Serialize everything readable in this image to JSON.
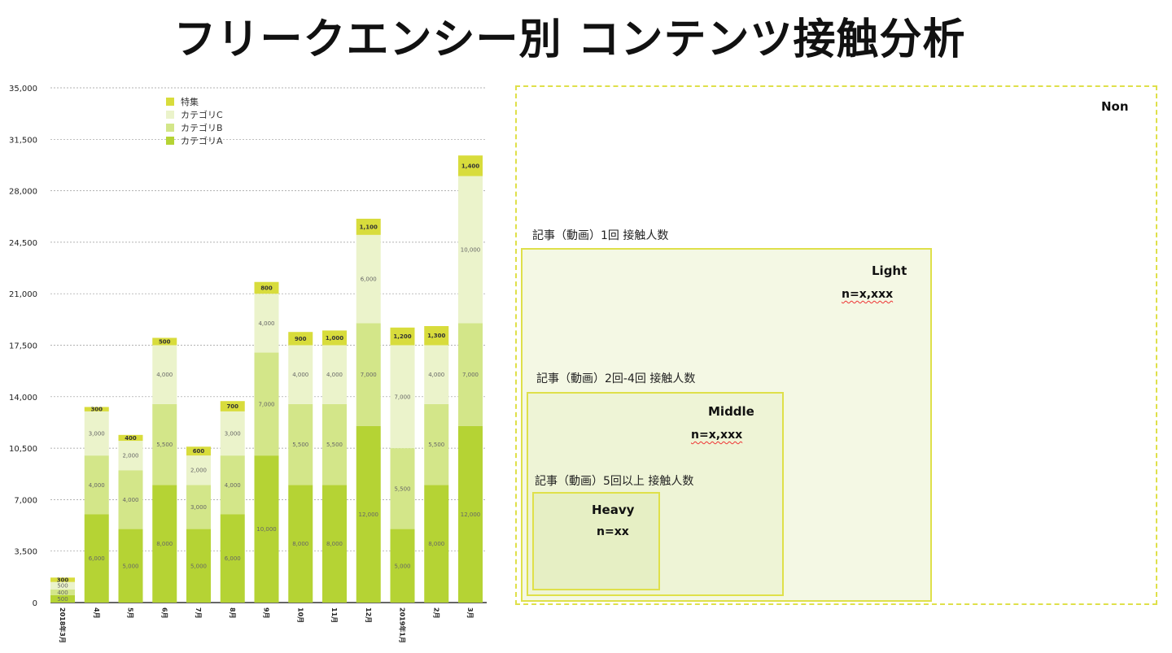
{
  "title": "フリークエンシー別 コンテンツ接触分析",
  "chart_data": {
    "type": "bar",
    "stacked": true,
    "categories": [
      "2018年3月",
      "4月",
      "5月",
      "6月",
      "7月",
      "8月",
      "9月",
      "10月",
      "11月",
      "12月",
      "2019年1月",
      "2月",
      "3月"
    ],
    "series": [
      {
        "name": "カテゴリA",
        "color": "#b5d334",
        "values": [
          500,
          6000,
          5000,
          8000,
          5000,
          6000,
          10000,
          8000,
          8000,
          12000,
          5000,
          8000,
          12000
        ]
      },
      {
        "name": "カテゴリB",
        "color": "#d3e689",
        "values": [
          400,
          4000,
          4000,
          5500,
          3000,
          4000,
          7000,
          5500,
          5500,
          7000,
          5500,
          5500,
          7000
        ]
      },
      {
        "name": "カテゴリC",
        "color": "#ebf3cb",
        "values": [
          500,
          3000,
          2000,
          4000,
          2000,
          3000,
          4000,
          4000,
          4000,
          6000,
          7000,
          4000,
          10000
        ]
      },
      {
        "name": "特集",
        "color": "#d8dc3c",
        "values": [
          300,
          300,
          400,
          500,
          600,
          700,
          800,
          900,
          1000,
          1100,
          1200,
          1300,
          1400
        ]
      }
    ],
    "ylim": [
      0,
      35000
    ],
    "yticks": [
      "0",
      "3,500",
      "7,000",
      "10,500",
      "14,000",
      "17,500",
      "21,000",
      "24,500",
      "28,000",
      "31,500",
      "35,000"
    ],
    "grid": true,
    "legend": "top-left",
    "legend_order": [
      "特集",
      "カテゴリC",
      "カテゴリB",
      "カテゴリA"
    ]
  },
  "diagram": {
    "non": {
      "label": "Non"
    },
    "light": {
      "caption": "記事（動画）1回 接触人数",
      "label": "Light",
      "n": "n=x,xxx"
    },
    "middle": {
      "caption": "記事（動画）2回-4回 接触人数",
      "label": "Middle",
      "n": "n=x,xxx"
    },
    "heavy": {
      "caption": "記事（動画）5回以上 接触人数",
      "label": "Heavy",
      "n": "n=xx"
    },
    "colors": {
      "border": "#dfe04a",
      "fill": "#f1f6de"
    }
  }
}
